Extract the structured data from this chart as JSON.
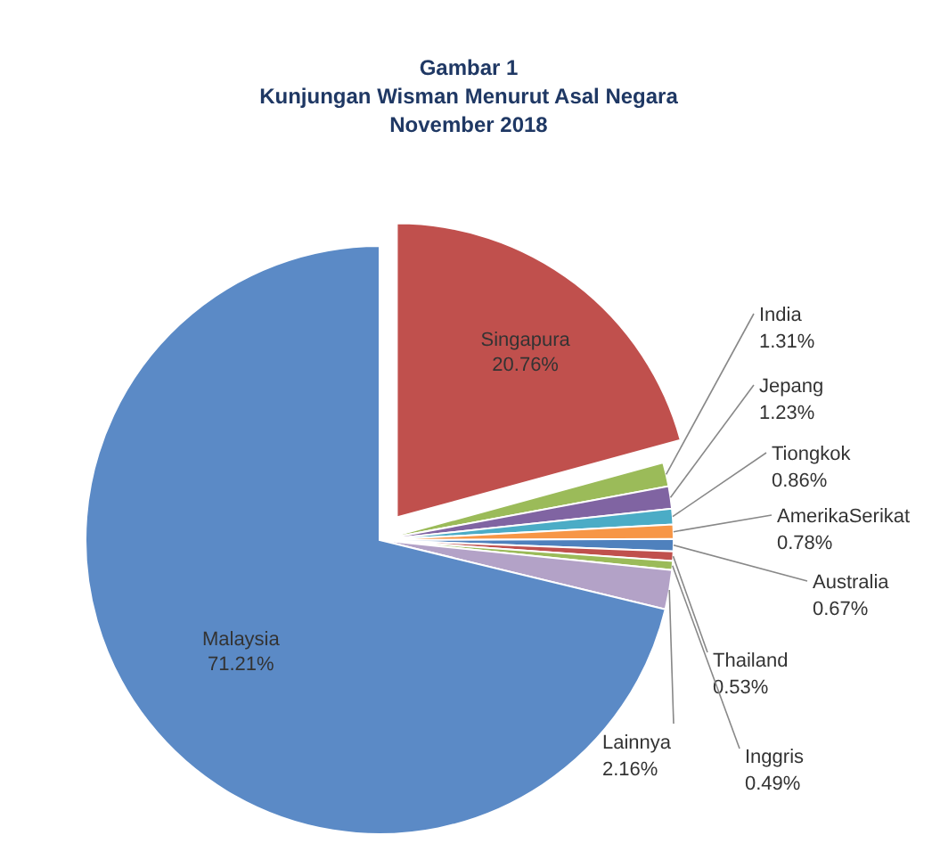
{
  "chart_data": {
    "type": "pie",
    "title": "Gambar 1\nKunjungan Wisman Menurut Asal Negara\nNovember 2018",
    "categories": [
      "Singapura",
      "India",
      "Jepang",
      "Tiongkok",
      "AmerikaSerikat",
      "Australia",
      "Thailand",
      "Inggris",
      "Lainnya",
      "Malaysia"
    ],
    "values": [
      20.76,
      1.31,
      1.23,
      0.86,
      0.78,
      0.67,
      0.53,
      0.49,
      2.16,
      71.21
    ],
    "colors": [
      "#c0504d",
      "#9bbb59",
      "#8064a2",
      "#4bacc6",
      "#f79646",
      "#4f81bd",
      "#c0504d",
      "#9bbb59",
      "#b3a2c7",
      "#5b8ac6"
    ],
    "value_labels": [
      "20.76%",
      "1.31%",
      "1.23%",
      "0.86%",
      "0.78%",
      "0.67%",
      "0.53%",
      "0.49%",
      "2.16%",
      "71.21%"
    ]
  }
}
